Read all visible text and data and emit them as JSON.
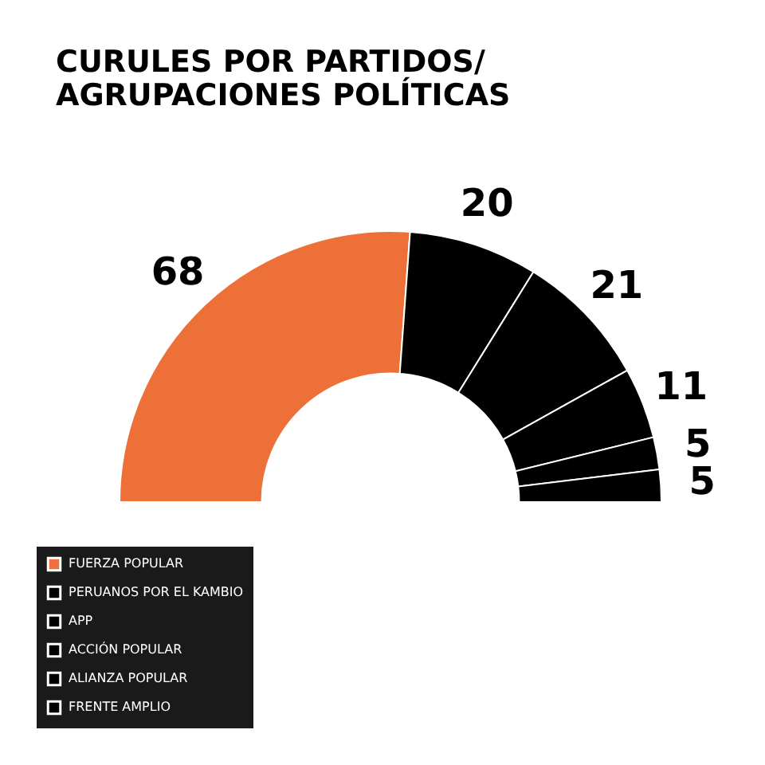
{
  "chart_data": {
    "type": "donut",
    "title": "CURULES POR PARTIDOS/\nAGRUPACIONES POLÍTICAS",
    "categories": [
      "FUERZA POPULAR",
      "PERUANOS POR EL KAMBIO",
      "APP",
      "ACCIÓN POPULAR",
      "ALIANZA POPULAR",
      "FRENTE AMPLIO"
    ],
    "values": [
      68,
      20,
      21,
      11,
      5,
      5
    ],
    "colors": [
      "#ec7038",
      "#000000",
      "#000000",
      "#000000",
      "#000000",
      "#000000"
    ],
    "data_labels": true,
    "legend": "bottom left"
  }
}
